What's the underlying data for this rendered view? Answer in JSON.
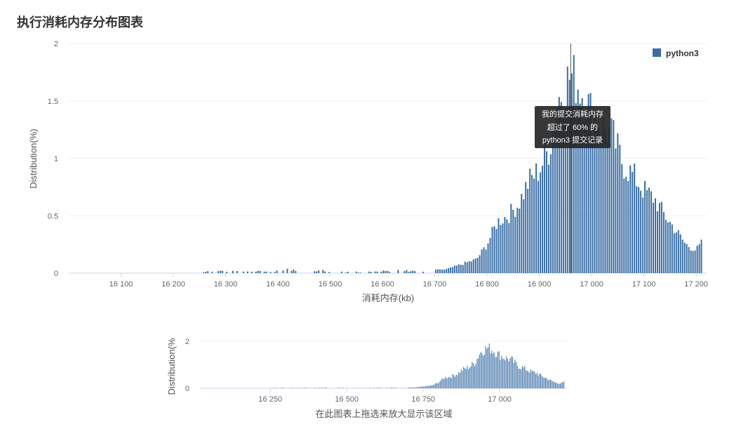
{
  "page_title": "执行消耗内存分布图表",
  "chart_data": [
    {
      "type": "bar",
      "title": "执行消耗内存分布图表",
      "xlabel": "消耗内存(kb)",
      "ylabel": "Distribution(%)",
      "xlim": [
        16000,
        17220
      ],
      "ylim": [
        0,
        2
      ],
      "x_ticks": [
        16100,
        16200,
        16300,
        16400,
        16500,
        16600,
        16700,
        16800,
        16900,
        17000,
        17100,
        17200
      ],
      "x_tick_labels": [
        "16 100",
        "16 200",
        "16 300",
        "16 400",
        "16 500",
        "16 600",
        "16 700",
        "16 800",
        "16 900",
        "17 000",
        "17 100",
        "17 200"
      ],
      "y_ticks": [
        0,
        0.5,
        1,
        1.5,
        2
      ],
      "y_tick_labels": [
        "0",
        "0.5",
        "1",
        "1.5",
        "2"
      ],
      "grid": true,
      "legend": {
        "position": "top-right",
        "entries": [
          "python3"
        ]
      },
      "series": [
        {
          "name": "python3",
          "color": "#3a6ea5",
          "anchors": [
            [
              16255,
              0.01
            ],
            [
              16300,
              0.02
            ],
            [
              16340,
              0.02
            ],
            [
              16380,
              0.01
            ],
            [
              16420,
              0.03
            ],
            [
              16440,
              0.02
            ],
            [
              16480,
              0.02
            ],
            [
              16520,
              0.01
            ],
            [
              16560,
              0.01
            ],
            [
              16600,
              0.02
            ],
            [
              16640,
              0.02
            ],
            [
              16680,
              0.02
            ],
            [
              16700,
              0.03
            ],
            [
              16720,
              0.03
            ],
            [
              16740,
              0.06
            ],
            [
              16760,
              0.09
            ],
            [
              16780,
              0.12
            ],
            [
              16800,
              0.25
            ],
            [
              16820,
              0.45
            ],
            [
              16840,
              0.5
            ],
            [
              16860,
              0.6
            ],
            [
              16880,
              0.8
            ],
            [
              16900,
              0.9
            ],
            [
              16920,
              1.1
            ],
            [
              16935,
              1.5
            ],
            [
              16950,
              1.65
            ],
            [
              16960,
              1.72
            ],
            [
              16970,
              1.68
            ],
            [
              16985,
              1.55
            ],
            [
              17000,
              1.4
            ],
            [
              17020,
              1.28
            ],
            [
              17040,
              1.2
            ],
            [
              17060,
              0.95
            ],
            [
              17080,
              0.85
            ],
            [
              17100,
              0.72
            ],
            [
              17120,
              0.65
            ],
            [
              17140,
              0.5
            ],
            [
              17160,
              0.38
            ],
            [
              17180,
              0.25
            ],
            [
              17200,
              0.2
            ],
            [
              17212,
              0.27
            ]
          ]
        }
      ],
      "marker": {
        "x": 16960,
        "label": "我的提交"
      },
      "tooltip": [
        "我的提交消耗内存",
        "超过了 60% 的",
        "python3 提交记录"
      ]
    },
    {
      "type": "bar",
      "role": "navigator",
      "ylabel": "Distribution(%",
      "xlim": [
        16020,
        17220
      ],
      "ylim": [
        0,
        2
      ],
      "x_ticks": [
        16250,
        16500,
        16750,
        17000
      ],
      "x_tick_labels": [
        "16 250",
        "16 500",
        "16 750",
        "17 000"
      ],
      "y_ticks": [
        0,
        2
      ],
      "y_tick_labels": [
        "0",
        "2"
      ],
      "caption": "在此图表上拖选来放大显示该区域"
    }
  ]
}
